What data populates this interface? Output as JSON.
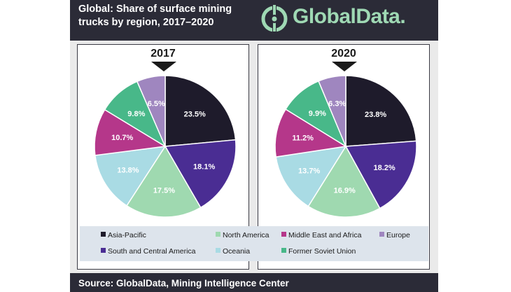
{
  "title": "Global: Share of surface mining trucks by region, 2017–2020",
  "brand": "GlobalData.",
  "source": "Source: GlobalData, Mining Intelligence Center",
  "colors": {
    "header_bg": "#2b2b37",
    "brand": "#9fd9b4",
    "legend_bg": "#dde4ec"
  },
  "legend": [
    {
      "label": "Asia-Pacific",
      "color": "#1e1b2b"
    },
    {
      "label": "North America",
      "color": "#9fd9b0"
    },
    {
      "label": "Middle East and Africa",
      "color": "#b5378a"
    },
    {
      "label": "Europe",
      "color": "#9f86bf"
    },
    {
      "label": "South and Central America",
      "color": "#4a2d93"
    },
    {
      "label": "Oceania",
      "color": "#a9dbe4"
    },
    {
      "label": "Former Soviet Union",
      "color": "#48b889"
    }
  ],
  "chart_data": [
    {
      "type": "pie",
      "title": "2017",
      "unit": "%",
      "slices": [
        {
          "label": "Asia-Pacific",
          "value": 23.5,
          "text": "23.5%"
        },
        {
          "label": "South and Central America",
          "value": 18.1,
          "text": "18.1%"
        },
        {
          "label": "North America",
          "value": 17.5,
          "text": "17.5%"
        },
        {
          "label": "Oceania",
          "value": 13.8,
          "text": "13.8%"
        },
        {
          "label": "Middle East and Africa",
          "value": 10.7,
          "text": "10.7%"
        },
        {
          "label": "Former Soviet Union",
          "value": 9.8,
          "text": "9.8%"
        },
        {
          "label": "Europe",
          "value": 6.5,
          "text": "6.5%"
        }
      ]
    },
    {
      "type": "pie",
      "title": "2020",
      "unit": "%",
      "slices": [
        {
          "label": "Asia-Pacific",
          "value": 23.8,
          "text": "23.8%"
        },
        {
          "label": "South and Central America",
          "value": 18.2,
          "text": "18.2%"
        },
        {
          "label": "North America",
          "value": 16.9,
          "text": "16.9%"
        },
        {
          "label": "Oceania",
          "value": 13.7,
          "text": "13.7%"
        },
        {
          "label": "Middle East and Africa",
          "value": 11.2,
          "text": "11.2%"
        },
        {
          "label": "Former Soviet Union",
          "value": 9.9,
          "text": "9.9%"
        },
        {
          "label": "Europe",
          "value": 6.3,
          "text": "6.3%"
        }
      ]
    }
  ]
}
